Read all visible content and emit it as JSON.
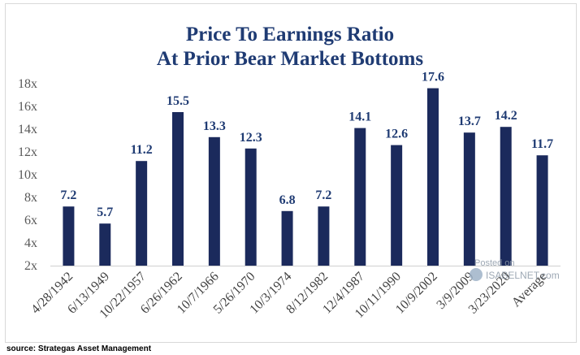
{
  "title_line1": "Price To Earnings Ratio",
  "title_line2": "At Prior Bear Market Bottoms",
  "source": "source: Strategas Asset Management",
  "watermark": {
    "posted": "Posted on",
    "brand": "ISABELNET.com"
  },
  "colors": {
    "bar": "#1b2a5c",
    "title": "#1f3b73",
    "label": "#1f3b73"
  },
  "chart_data": {
    "type": "bar",
    "title": "Price To Earnings Ratio At Prior Bear Market Bottoms",
    "xlabel": "",
    "ylabel": "",
    "categories": [
      "4/28/1942",
      "6/13/1949",
      "10/22/1957",
      "6/26/1962",
      "10/7/1966",
      "5/26/1970",
      "10/3/1974",
      "8/12/1982",
      "12/4/1987",
      "10/11/1990",
      "10/9/2002",
      "3/9/2009",
      "3/23/2020",
      "Average"
    ],
    "values": [
      7.2,
      5.7,
      11.2,
      15.5,
      13.3,
      12.3,
      6.8,
      7.2,
      14.1,
      12.6,
      17.6,
      13.7,
      14.2,
      11.7
    ],
    "data_labels": [
      "7.2",
      "5.7",
      "11.2",
      "15.5",
      "13.3",
      "12.3",
      "6.8",
      "7.2",
      "14.1",
      "12.6",
      "17.6",
      "13.7",
      "14.2",
      "11.7"
    ],
    "ylim": [
      2,
      18
    ],
    "yticks": [
      2,
      4,
      6,
      8,
      10,
      12,
      14,
      16,
      18
    ],
    "ytick_labels": [
      "2x",
      "4x",
      "6x",
      "8x",
      "10x",
      "12x",
      "14x",
      "16x",
      "18x"
    ],
    "grid": false,
    "legend": "none"
  }
}
